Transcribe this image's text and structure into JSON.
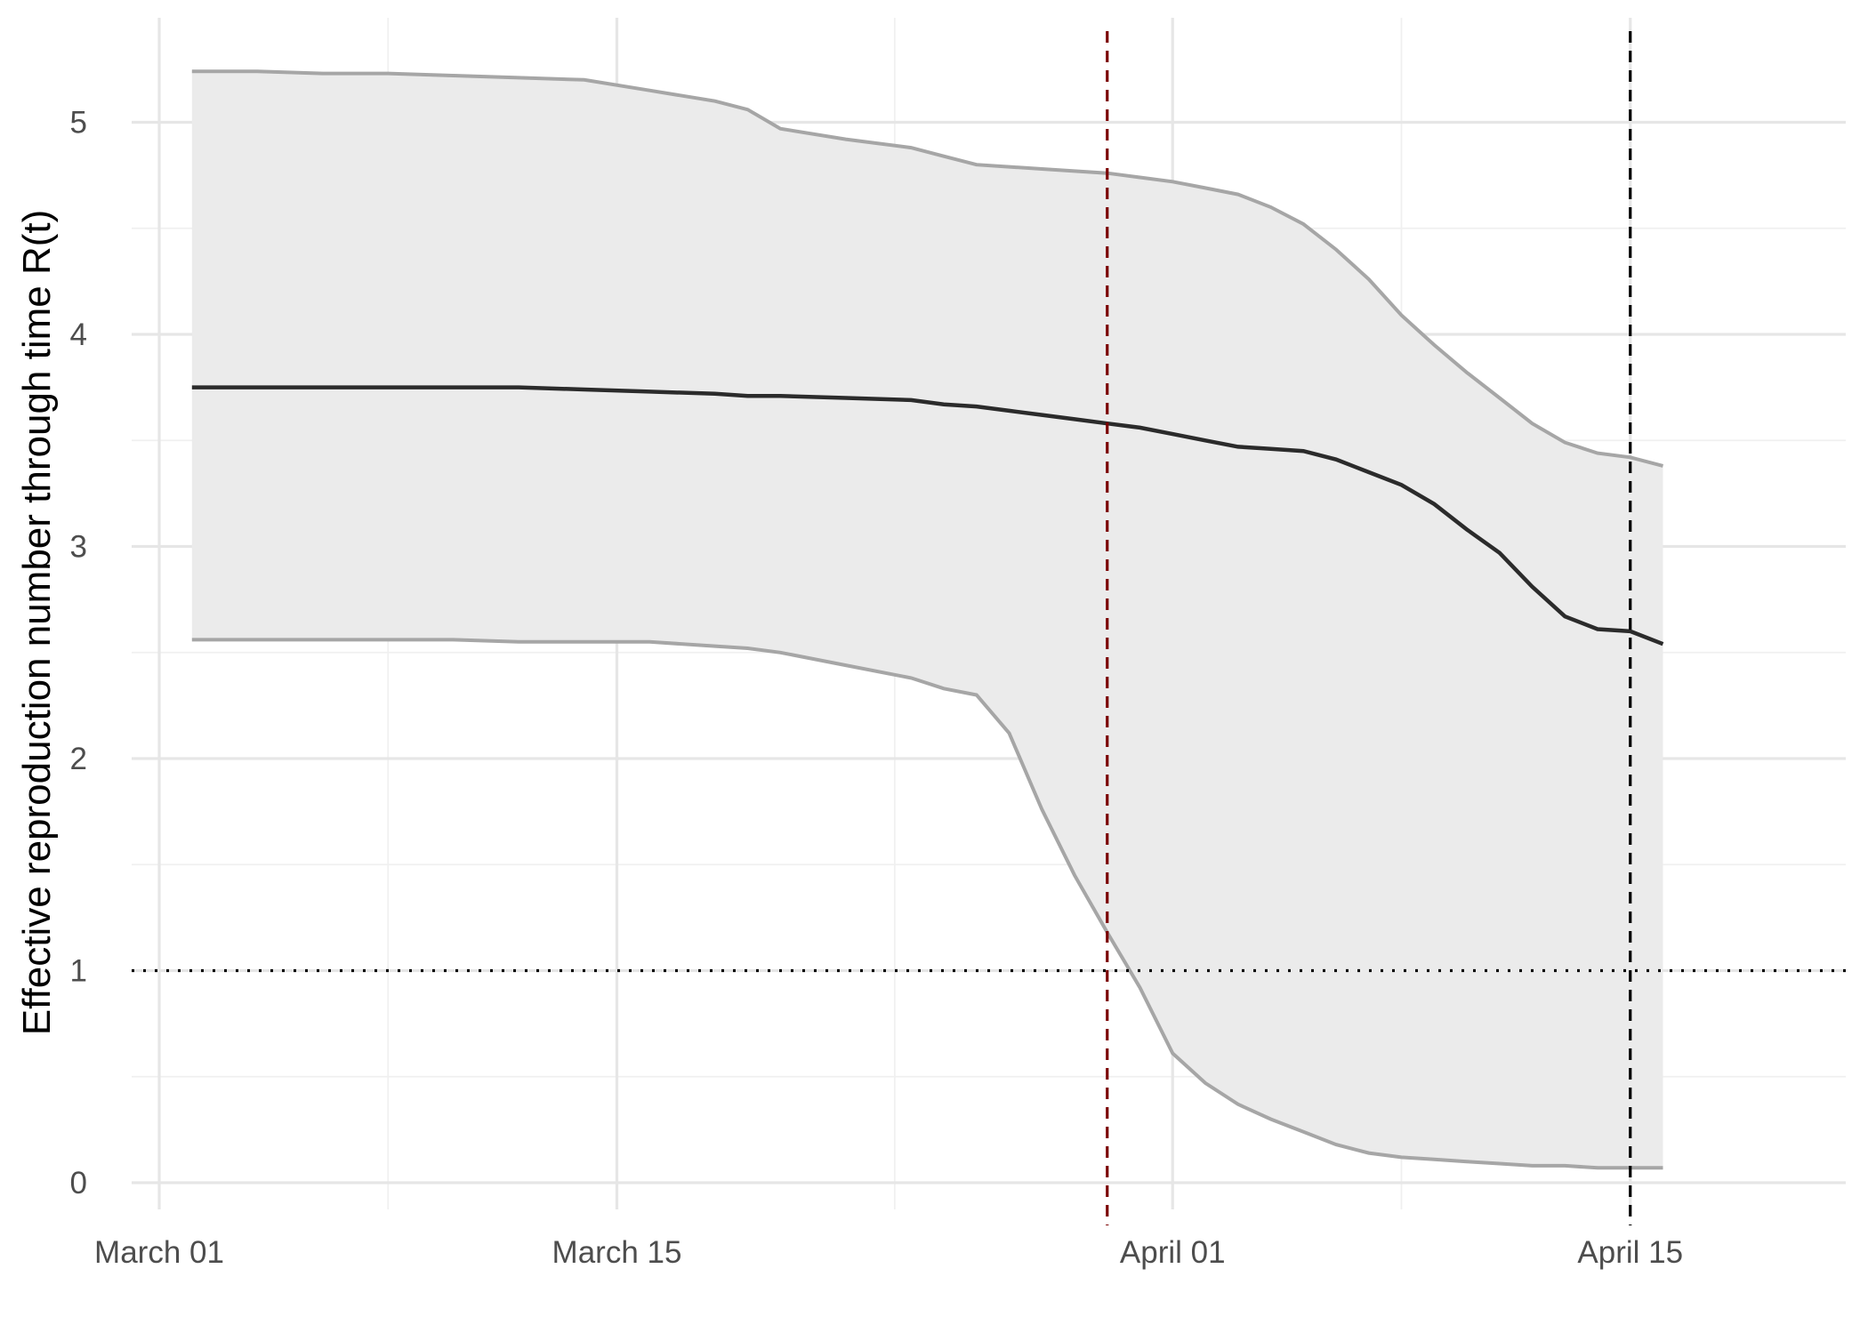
{
  "chart_data": {
    "type": "area",
    "title": "",
    "xlabel": "",
    "ylabel": "Effective reproduction number through time R(t)",
    "x_tick_labels": [
      "March 01",
      "March 15",
      "April 01",
      "April 15"
    ],
    "y_tick_labels": [
      "0",
      "1",
      "2",
      "3",
      "4",
      "5"
    ],
    "xlim": [
      "2020-02-28",
      "2020-04-17"
    ],
    "ylim": [
      -0.15,
      5.45
    ],
    "grid": true,
    "legend": "none",
    "x": [
      "2020-03-02",
      "2020-03-04",
      "2020-03-06",
      "2020-03-08",
      "2020-03-10",
      "2020-03-12",
      "2020-03-14",
      "2020-03-16",
      "2020-03-18",
      "2020-03-19",
      "2020-03-20",
      "2020-03-22",
      "2020-03-24",
      "2020-03-25",
      "2020-03-26",
      "2020-03-27",
      "2020-03-28",
      "2020-03-29",
      "2020-03-30",
      "2020-03-31",
      "2020-04-01",
      "2020-04-02",
      "2020-04-03",
      "2020-04-04",
      "2020-04-05",
      "2020-04-06",
      "2020-04-07",
      "2020-04-08",
      "2020-04-09",
      "2020-04-10",
      "2020-04-11",
      "2020-04-12",
      "2020-04-13",
      "2020-04-14",
      "2020-04-15",
      "2020-04-16"
    ],
    "series": [
      {
        "name": "",
        "role": "upper",
        "color": "#a6a6a6",
        "values": [
          5.24,
          5.24,
          5.23,
          5.23,
          5.22,
          5.21,
          5.2,
          5.15,
          5.1,
          5.06,
          4.97,
          4.92,
          4.88,
          4.84,
          4.8,
          4.79,
          4.78,
          4.77,
          4.76,
          4.74,
          4.72,
          4.69,
          4.66,
          4.6,
          4.52,
          4.4,
          4.26,
          4.09,
          3.95,
          3.82,
          3.7,
          3.58,
          3.49,
          3.44,
          3.42,
          3.38
        ]
      },
      {
        "name": "",
        "role": "median",
        "color": "#2b2b2b",
        "values": [
          3.75,
          3.75,
          3.75,
          3.75,
          3.75,
          3.75,
          3.74,
          3.73,
          3.72,
          3.71,
          3.71,
          3.7,
          3.69,
          3.67,
          3.66,
          3.64,
          3.62,
          3.6,
          3.58,
          3.56,
          3.53,
          3.5,
          3.47,
          3.46,
          3.45,
          3.41,
          3.35,
          3.29,
          3.2,
          3.08,
          2.97,
          2.81,
          2.67,
          2.61,
          2.6,
          2.54
        ]
      },
      {
        "name": "",
        "role": "lower",
        "color": "#a6a6a6",
        "values": [
          2.56,
          2.56,
          2.56,
          2.56,
          2.56,
          2.55,
          2.55,
          2.55,
          2.53,
          2.52,
          2.5,
          2.44,
          2.38,
          2.33,
          2.3,
          2.12,
          1.76,
          1.45,
          1.18,
          0.92,
          0.61,
          0.47,
          0.37,
          0.3,
          0.24,
          0.18,
          0.14,
          0.12,
          0.11,
          0.1,
          0.09,
          0.08,
          0.08,
          0.07,
          0.07,
          0.07
        ]
      }
    ],
    "band_fill": "#ebebeb",
    "reference_lines": [
      {
        "axis": "y",
        "value": 1,
        "style": "dotted",
        "color": "#000000"
      },
      {
        "axis": "x",
        "value": "2020-03-30",
        "style": "dashed",
        "color": "#7a0000"
      },
      {
        "axis": "x",
        "value": "2020-04-15",
        "style": "dashed",
        "color": "#000000"
      }
    ]
  }
}
